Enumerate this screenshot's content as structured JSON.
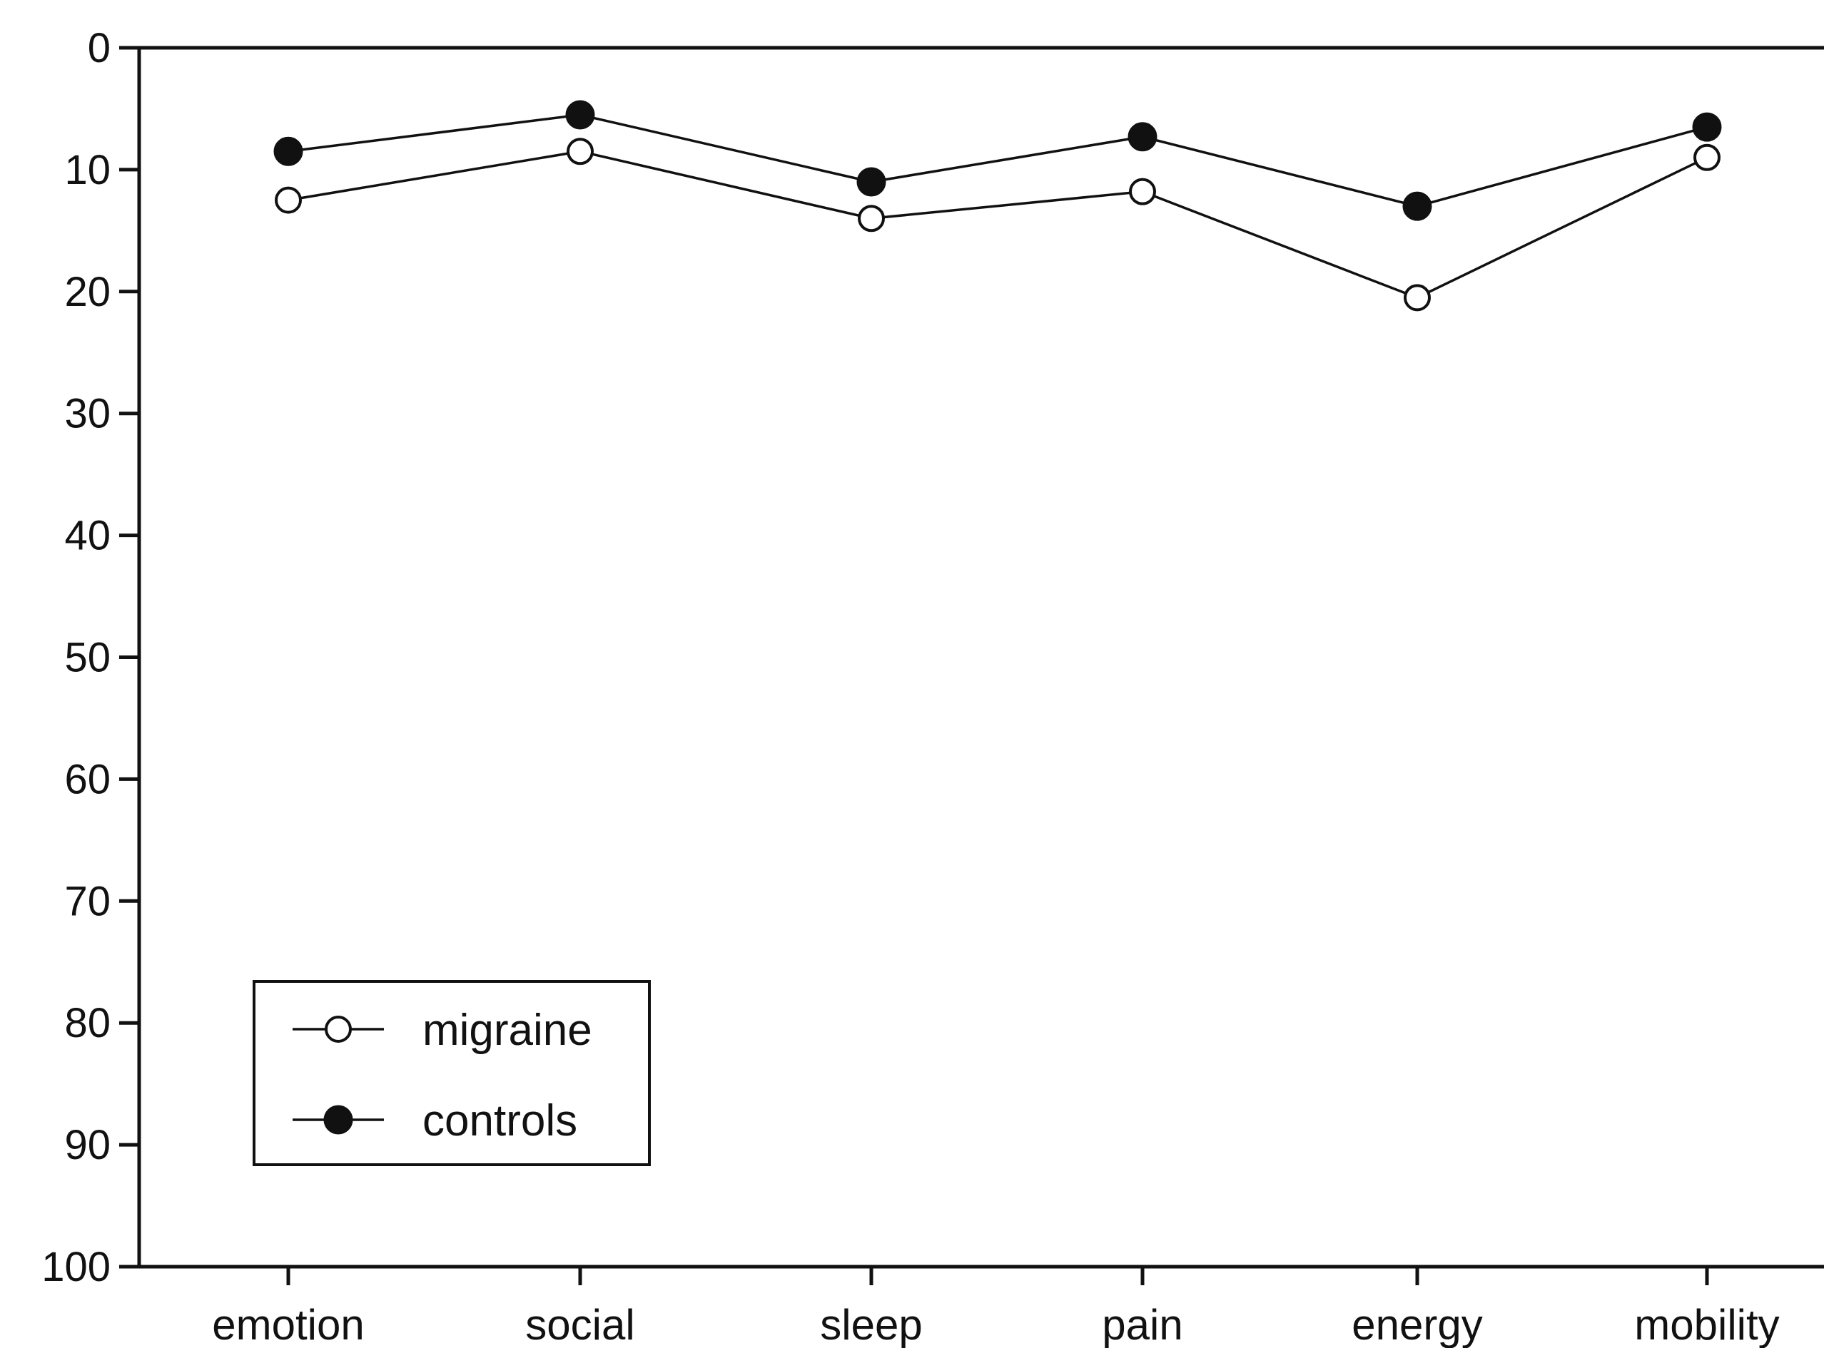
{
  "chart_data": {
    "type": "line",
    "title": "",
    "xlabel": "",
    "ylabel": "",
    "categories": [
      "emotion",
      "social",
      "sleep",
      "pain",
      "energy",
      "mobility"
    ],
    "ylim": [
      0,
      100
    ],
    "y_inverted": true,
    "yticks": [
      "0",
      "10",
      "20",
      "30",
      "40",
      "50",
      "60",
      "70",
      "80",
      "90",
      "100"
    ],
    "grid": false,
    "legend_position": "bottom-left",
    "series": [
      {
        "name": "migraine",
        "marker": "open-circle",
        "values": [
          12.5,
          8.5,
          14,
          11.8,
          20.5,
          9
        ]
      },
      {
        "name": "controls",
        "marker": "filled-circle",
        "values": [
          8.5,
          5.5,
          11,
          7.3,
          13,
          6.5
        ]
      }
    ],
    "legend": {
      "migraine_label": "migraine",
      "controls_label": "controls"
    },
    "colors": {
      "ink": "#111111",
      "background": "#ffffff"
    }
  }
}
